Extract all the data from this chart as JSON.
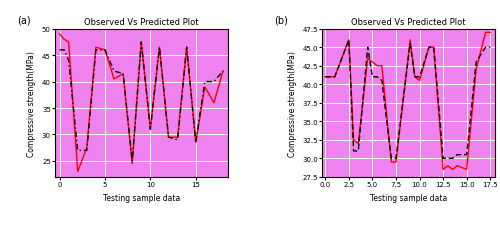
{
  "title": "Observed Vs Predicted Plot",
  "xlabel": "Testing sample data",
  "ylabel": "Compressive strength(MPa)",
  "bg_color": "#EE82EE",
  "grid_color": "white",
  "a_x": [
    0,
    0.5,
    1,
    2,
    3,
    4,
    5,
    6,
    7,
    8,
    9,
    10,
    11,
    12,
    13,
    14,
    15,
    16,
    17,
    18
  ],
  "a_observed": [
    49,
    48,
    47.5,
    23,
    27.5,
    46.5,
    46,
    40.5,
    41.5,
    24.5,
    47.5,
    31,
    46.5,
    29.5,
    29.5,
    46.5,
    28.5,
    39,
    36,
    42
  ],
  "a_predicted": [
    46,
    46,
    44,
    27,
    27,
    46,
    46,
    42,
    41.5,
    25,
    47.5,
    31,
    46.5,
    29.5,
    29,
    46.5,
    28.5,
    40,
    40,
    42
  ],
  "a_ylim": [
    22,
    50
  ],
  "a_yticks": [
    25,
    30,
    35,
    40,
    45,
    50
  ],
  "a_xticks": [
    0,
    5,
    10,
    15
  ],
  "a_xlim": [
    -0.5,
    18.5
  ],
  "b_x": [
    0,
    1,
    2.5,
    3,
    3.5,
    4.5,
    5,
    5.5,
    6,
    7,
    7.5,
    9,
    9.5,
    10,
    11,
    11.5,
    12.5,
    13,
    13.5,
    14,
    15,
    16,
    17,
    17.5
  ],
  "b_observed": [
    41,
    41,
    46,
    32.5,
    32,
    43.5,
    43,
    42.5,
    42.5,
    29.5,
    29.5,
    46,
    41,
    40.5,
    45,
    45,
    28.5,
    29,
    28.5,
    29,
    28.5,
    42,
    47,
    47
  ],
  "b_predicted": [
    41,
    41,
    46,
    31,
    31,
    45,
    41,
    41,
    40.5,
    30,
    30,
    45.5,
    41,
    41,
    45,
    45,
    30,
    30,
    30,
    30.5,
    30.5,
    43,
    45,
    45
  ],
  "b_ylim": [
    27.5,
    47.5
  ],
  "b_yticks": [
    27.5,
    30.0,
    32.5,
    35.0,
    37.5,
    40.0,
    42.5,
    45.0,
    47.5
  ],
  "b_xticks": [
    0.0,
    2.5,
    5.0,
    7.5,
    10.0,
    12.5,
    15.0,
    17.5
  ],
  "b_xlim": [
    -0.3,
    18.0
  ],
  "observed_color": "red",
  "predicted_color": "black",
  "observed_lw": 1.0,
  "predicted_lw": 1.0
}
